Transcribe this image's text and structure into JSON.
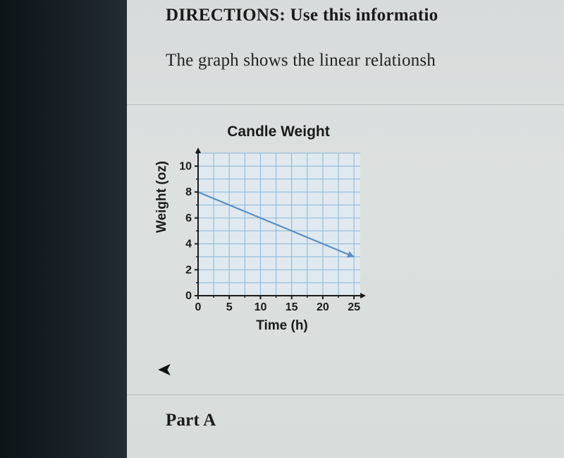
{
  "directions_label": "DIRECTIONS:",
  "directions_rest": " Use this informatio",
  "intro_text": "The graph shows the linear relationsh",
  "part_label": "Part A",
  "chart": {
    "type": "line",
    "title": "Candle Weight",
    "xlabel": "Time (h)",
    "ylabel": "Weight (oz)",
    "xlim": [
      0,
      26
    ],
    "ylim": [
      0,
      11
    ],
    "xtick_major": [
      0,
      5,
      10,
      15,
      20,
      25
    ],
    "ytick_major": [
      0,
      2,
      4,
      6,
      8,
      10
    ],
    "grid_minor_step_x": 2.5,
    "grid_minor_step_y": 1,
    "data_points": [
      [
        0,
        8
      ],
      [
        25,
        3
      ]
    ],
    "colors": {
      "background": "#dfe9ef",
      "grid": "#8ab6d6",
      "axis": "#1a1a1a",
      "line": "#5a8fc4",
      "tick_text": "#1a1a1a"
    },
    "line_width": 2.2,
    "tick_fontsize": 16,
    "title_fontsize": 21,
    "label_fontsize": 19
  }
}
